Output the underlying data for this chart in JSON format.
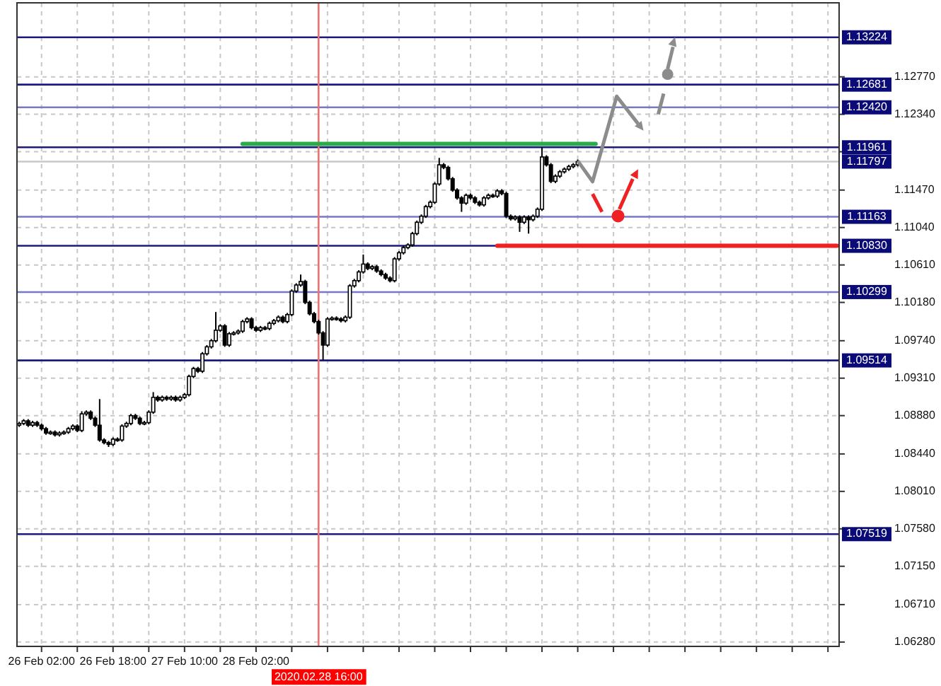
{
  "chart_data": {
    "type": "candlestick",
    "ylim": [
      1.0623,
      1.1362
    ],
    "categories": [
      null,
      null,
      null,
      null,
      null,
      "26 Feb 02:00",
      null,
      null,
      null,
      null,
      null,
      null,
      null,
      null,
      null,
      null,
      null,
      null,
      null,
      null,
      null,
      "26 Feb 18:00",
      null,
      null,
      null,
      null,
      null,
      null,
      null,
      null,
      null,
      null,
      null,
      null,
      null,
      null,
      null,
      "27 Feb 10:00",
      null,
      null,
      null,
      null,
      null,
      null,
      null,
      null,
      null,
      null,
      null,
      null,
      null,
      null,
      null,
      "28 Feb 02:00",
      null,
      null,
      null,
      null,
      null,
      null,
      null,
      null,
      null,
      null,
      null,
      null,
      null,
      "2020.02.28 16:00",
      null,
      null,
      null,
      null,
      null,
      null,
      null,
      null,
      null,
      null,
      null,
      null,
      null,
      null,
      null,
      null,
      null,
      null,
      null,
      null,
      null,
      null,
      null,
      null,
      null,
      null,
      null,
      null,
      null,
      null,
      null,
      null,
      null,
      null,
      null,
      null,
      null,
      null,
      null,
      null,
      null,
      null,
      null,
      null,
      null,
      null,
      null,
      null,
      null,
      null,
      null,
      null,
      null,
      null,
      null,
      null,
      null,
      null,
      null,
      null,
      null,
      null,
      null,
      null,
      null,
      null,
      null,
      null,
      null,
      null,
      null,
      null,
      null,
      null,
      null,
      null,
      null,
      null,
      null,
      null,
      null,
      null,
      null,
      null,
      null,
      null,
      null,
      null,
      null,
      null,
      null,
      null,
      null,
      null,
      null,
      null,
      null,
      null,
      null,
      null,
      null,
      null,
      null,
      null,
      null,
      null,
      null,
      null,
      null,
      null,
      null,
      null,
      null,
      null,
      null,
      null
    ],
    "yticks": [
      {
        "value": 1.1277,
        "label": "1.12770"
      },
      {
        "value": 1.1234,
        "label": "1.12340"
      },
      {
        "value": 1.1191,
        "label": null
      },
      {
        "value": 1.1147,
        "label": "1.11470"
      },
      {
        "value": 1.1104,
        "label": "1.11040"
      },
      {
        "value": 1.1061,
        "label": "1.10610"
      },
      {
        "value": 1.1018,
        "label": "1.10180"
      },
      {
        "value": 1.0974,
        "label": "1.09740"
      },
      {
        "value": 1.0931,
        "label": "1.09310"
      },
      {
        "value": 1.0888,
        "label": "1.08880"
      },
      {
        "value": 1.0844,
        "label": "1.08440"
      },
      {
        "value": 1.0801,
        "label": "1.08010"
      },
      {
        "value": 1.0758,
        "label": "1.07580"
      },
      {
        "value": 1.0715,
        "label": "1.07150"
      },
      {
        "value": 1.0671,
        "label": "1.06710"
      },
      {
        "value": 1.0628,
        "label": "1.06280"
      }
    ],
    "grid": true,
    "ref_lines": [
      {
        "axis": "y",
        "value": 1.13224,
        "label": "1.13224",
        "color": "#1a1a80"
      },
      {
        "axis": "y",
        "value": 1.12681,
        "label": "1.12681",
        "color": "#1a1a80"
      },
      {
        "axis": "y",
        "value": 1.1242,
        "label": "1.12420",
        "color": "#7878c8"
      },
      {
        "axis": "y",
        "value": 1.11961,
        "label": "1.11961",
        "color": "#1a1a80"
      },
      {
        "axis": "y",
        "value": 1.11797,
        "label": "1.11797",
        "color": "#c8c8c8"
      },
      {
        "axis": "y",
        "value": 1.11163,
        "label": "1.11163",
        "color": "#7878c8"
      },
      {
        "axis": "y",
        "value": 1.1083,
        "label": "1.10830",
        "color": "#1a1a80"
      },
      {
        "axis": "y",
        "value": 1.10299,
        "label": "1.10299",
        "color": "#7878c8"
      },
      {
        "axis": "y",
        "value": 1.09514,
        "label": "1.09514",
        "color": "#1a1a80"
      },
      {
        "axis": "y",
        "value": 1.07519,
        "label": "1.07519",
        "color": "#1a1a80"
      },
      {
        "axis": "x",
        "value": "2020.02.28 16:00",
        "color": "#f07070"
      }
    ],
    "series": [
      {
        "color": "#000000",
        "ohlc": [
          [
            1.0877,
            1.0881,
            1.0875,
            1.0879
          ],
          [
            1.0879,
            1.0884,
            1.0877,
            1.0882
          ],
          [
            1.0882,
            1.0884,
            1.0875,
            1.0877
          ],
          [
            1.0877,
            1.0882,
            1.0875,
            1.088
          ],
          [
            1.088,
            1.0882,
            1.0875,
            1.0877
          ],
          [
            1.0877,
            1.0879,
            1.0871,
            1.0873
          ],
          [
            1.0873,
            1.0875,
            1.0866,
            1.0868
          ],
          [
            1.0868,
            1.0871,
            1.0866,
            1.0869
          ],
          [
            1.0869,
            1.0871,
            1.0864,
            1.0866
          ],
          [
            1.0866,
            1.087,
            1.0864,
            1.0868
          ],
          [
            1.0868,
            1.0871,
            1.0866,
            1.0869
          ],
          [
            1.0869,
            1.0875,
            1.0867,
            1.0873
          ],
          [
            1.0873,
            1.0878,
            1.0871,
            1.0876
          ],
          [
            1.0876,
            1.0878,
            1.0869,
            1.0871
          ],
          [
            1.0871,
            1.0893,
            1.0869,
            1.089
          ],
          [
            1.089,
            1.0894,
            1.0888,
            1.0892
          ],
          [
            1.0892,
            1.0894,
            1.0883,
            1.0885
          ],
          [
            1.0885,
            1.0887,
            1.0875,
            1.0877
          ],
          [
            1.0877,
            1.0907,
            1.0858,
            1.086
          ],
          [
            1.086,
            1.0862,
            1.0855,
            1.0857
          ],
          [
            1.0857,
            1.0859,
            1.0852,
            1.0855
          ],
          [
            1.0855,
            1.0863,
            1.0853,
            1.0861
          ],
          [
            1.0861,
            1.0863,
            1.0858,
            1.086
          ],
          [
            1.086,
            1.0878,
            1.0858,
            1.0876
          ],
          [
            1.0876,
            1.0881,
            1.0874,
            1.0879
          ],
          [
            1.0879,
            1.089,
            1.0877,
            1.0888
          ],
          [
            1.0888,
            1.089,
            1.0883,
            1.0885
          ],
          [
            1.0885,
            1.0887,
            1.0877,
            1.0879
          ],
          [
            1.0879,
            1.0882,
            1.0877,
            1.088
          ],
          [
            1.088,
            1.0894,
            1.0878,
            1.0892
          ],
          [
            1.0892,
            1.0915,
            1.089,
            1.0909
          ],
          [
            1.0909,
            1.0911,
            1.0904,
            1.0906
          ],
          [
            1.0906,
            1.0911,
            1.0904,
            1.0909
          ],
          [
            1.0909,
            1.0911,
            1.0905,
            1.0907
          ],
          [
            1.0907,
            1.0911,
            1.0905,
            1.0909
          ],
          [
            1.0909,
            1.0911,
            1.0904,
            1.0906
          ],
          [
            1.0906,
            1.0911,
            1.0904,
            1.0909
          ],
          [
            1.0909,
            1.0914,
            1.0907,
            1.0912
          ],
          [
            1.0912,
            1.0935,
            1.091,
            1.0933
          ],
          [
            1.0933,
            1.0944,
            1.0931,
            1.0942
          ],
          [
            1.0942,
            1.0944,
            1.0937,
            1.0939
          ],
          [
            1.0939,
            1.0961,
            1.0937,
            1.0959
          ],
          [
            1.0959,
            1.0969,
            1.0957,
            1.0967
          ],
          [
            1.0967,
            1.0976,
            1.0965,
            1.0974
          ],
          [
            1.0974,
            1.1007,
            1.0972,
            1.0986
          ],
          [
            1.0986,
            1.0993,
            1.0984,
            1.0991
          ],
          [
            1.0991,
            1.0993,
            1.0967,
            1.0969
          ],
          [
            1.0969,
            1.0984,
            1.0967,
            1.0982
          ],
          [
            1.0982,
            1.0985,
            1.098,
            1.0983
          ],
          [
            1.0983,
            1.0987,
            1.0981,
            1.0985
          ],
          [
            1.0985,
            1.0998,
            1.0983,
            1.0996
          ],
          [
            1.0996,
            1.1001,
            1.0994,
            1.0999
          ],
          [
            1.0999,
            1.1001,
            1.0987,
            1.0989
          ],
          [
            1.0989,
            1.0991,
            1.0984,
            1.0986
          ],
          [
            1.0986,
            1.0991,
            1.0984,
            1.0989
          ],
          [
            1.0989,
            1.0991,
            1.0986,
            1.0988
          ],
          [
            1.0988,
            1.0996,
            1.0986,
            1.0994
          ],
          [
            1.0994,
            1.0999,
            1.0992,
            1.0997
          ],
          [
            1.0997,
            1.1003,
            1.0995,
            1.1001
          ],
          [
            1.1001,
            1.1003,
            1.0994,
            1.0996
          ],
          [
            1.0996,
            1.1006,
            1.0994,
            1.1004
          ],
          [
            1.1004,
            1.1033,
            1.1002,
            1.1031
          ],
          [
            1.1031,
            1.104,
            1.1029,
            1.1038
          ],
          [
            1.1038,
            1.105,
            1.1036,
            1.1042
          ],
          [
            1.1042,
            1.1044,
            1.1016,
            1.1018
          ],
          [
            1.1018,
            1.102,
            1.1003,
            1.1005
          ],
          [
            1.1005,
            1.1007,
            1.0994,
            1.0996
          ],
          [
            1.0996,
            1.0998,
            1.0981,
            1.0983
          ],
          [
            1.0983,
            1.0985,
            1.0952,
            1.0969
          ],
          [
            1.0969,
            1.1001,
            1.0967,
            1.0999
          ],
          [
            1.0999,
            1.1002,
            1.0997,
            1.1
          ],
          [
            1.1,
            1.1002,
            1.0997,
            1.0999
          ],
          [
            1.0999,
            1.1001,
            1.0995,
            1.0997
          ],
          [
            1.0997,
            1.1003,
            1.0995,
            1.1001
          ],
          [
            1.1001,
            1.1039,
            1.0999,
            1.1037
          ],
          [
            1.1037,
            1.1045,
            1.1035,
            1.1043
          ],
          [
            1.1043,
            1.1055,
            1.1041,
            1.1053
          ],
          [
            1.1053,
            1.1073,
            1.1051,
            1.1062
          ],
          [
            1.1062,
            1.1064,
            1.1055,
            1.1057
          ],
          [
            1.1057,
            1.1061,
            1.1055,
            1.1059
          ],
          [
            1.1059,
            1.1061,
            1.1052,
            1.1054
          ],
          [
            1.1054,
            1.1056,
            1.1048,
            1.105
          ],
          [
            1.105,
            1.1052,
            1.1044,
            1.1046
          ],
          [
            1.1046,
            1.1048,
            1.1041,
            1.1043
          ],
          [
            1.1043,
            1.107,
            1.1041,
            1.1068
          ],
          [
            1.1068,
            1.1077,
            1.1066,
            1.1075
          ],
          [
            1.1075,
            1.1083,
            1.1073,
            1.1081
          ],
          [
            1.1081,
            1.1086,
            1.1079,
            1.1084
          ],
          [
            1.1084,
            1.1099,
            1.1082,
            1.1097
          ],
          [
            1.1097,
            1.1112,
            1.1095,
            1.111
          ],
          [
            1.111,
            1.1119,
            1.1108,
            1.1117
          ],
          [
            1.1117,
            1.113,
            1.1115,
            1.1128
          ],
          [
            1.1128,
            1.1135,
            1.1126,
            1.1133
          ],
          [
            1.1133,
            1.1156,
            1.1131,
            1.1154
          ],
          [
            1.1154,
            1.1184,
            1.1152,
            1.1176
          ],
          [
            1.1176,
            1.1178,
            1.1171,
            1.1173
          ],
          [
            1.1173,
            1.1175,
            1.1158,
            1.116
          ],
          [
            1.116,
            1.1162,
            1.1145,
            1.1147
          ],
          [
            1.1147,
            1.1149,
            1.1136,
            1.1138
          ],
          [
            1.1138,
            1.114,
            1.1122,
            1.1132
          ],
          [
            1.1132,
            1.1143,
            1.113,
            1.1141
          ],
          [
            1.1141,
            1.1143,
            1.1136,
            1.1138
          ],
          [
            1.1138,
            1.114,
            1.1131,
            1.1133
          ],
          [
            1.1133,
            1.1135,
            1.1128,
            1.113
          ],
          [
            1.113,
            1.114,
            1.1128,
            1.1138
          ],
          [
            1.1138,
            1.1143,
            1.1136,
            1.1141
          ],
          [
            1.1141,
            1.1143,
            1.1138,
            1.114
          ],
          [
            1.114,
            1.1148,
            1.1138,
            1.1146
          ],
          [
            1.1146,
            1.1148,
            1.1141,
            1.1143
          ],
          [
            1.1143,
            1.1145,
            1.1115,
            1.1117
          ],
          [
            1.1117,
            1.1119,
            1.1112,
            1.1114
          ],
          [
            1.1114,
            1.1118,
            1.1112,
            1.1116
          ],
          [
            1.1116,
            1.1118,
            1.1099,
            1.111
          ],
          [
            1.111,
            1.1118,
            1.1108,
            1.1116
          ],
          [
            1.1116,
            1.1118,
            1.1097,
            1.1113
          ],
          [
            1.1113,
            1.1119,
            1.1111,
            1.1117
          ],
          [
            1.1117,
            1.1127,
            1.1115,
            1.1125
          ],
          [
            1.1125,
            1.1196,
            1.1123,
            1.1185
          ],
          [
            1.1185,
            1.1187,
            1.1174,
            1.1176
          ],
          [
            1.1176,
            1.1178,
            1.1155,
            1.1157
          ],
          [
            1.1157,
            1.1165,
            1.1155,
            1.1163
          ],
          [
            1.1163,
            1.117,
            1.1161,
            1.1168
          ],
          [
            1.1168,
            1.1173,
            1.1166,
            1.1171
          ],
          [
            1.1171,
            1.1176,
            1.1169,
            1.1174
          ],
          [
            1.1174,
            1.1178,
            1.1172,
            1.1176
          ],
          [
            1.1176,
            1.1182,
            1.1174,
            1.11797
          ],
          null,
          null,
          null,
          null,
          null,
          null,
          null,
          null,
          null,
          null,
          null,
          null,
          null,
          null,
          null,
          null,
          null,
          null,
          null,
          null,
          null,
          null,
          null,
          null,
          null,
          null,
          null,
          null,
          null,
          null,
          null,
          null,
          null,
          null,
          null,
          null,
          null,
          null,
          null,
          null,
          null,
          null,
          null,
          null,
          null,
          null,
          null,
          null,
          null,
          null,
          null,
          null,
          null,
          null,
          null,
          null,
          null,
          null
        ]
      },
      {
        "type": "line",
        "color": "#2eaa48",
        "values": [
          null,
          null,
          null,
          null,
          null,
          null,
          null,
          null,
          null,
          null,
          null,
          null,
          null,
          null,
          null,
          null,
          null,
          null,
          null,
          null,
          null,
          null,
          null,
          null,
          null,
          null,
          null,
          null,
          null,
          null,
          null,
          null,
          null,
          null,
          null,
          null,
          null,
          null,
          null,
          null,
          null,
          null,
          null,
          null,
          null,
          null,
          null,
          null,
          null,
          null,
          1.12,
          1.12,
          1.12,
          1.12,
          1.12,
          1.12,
          1.12,
          1.12,
          1.12,
          1.12,
          1.12,
          1.12,
          1.12,
          1.12,
          1.12,
          1.12,
          1.12,
          1.12,
          1.12,
          1.12,
          1.12,
          1.12,
          1.12,
          1.12,
          1.12,
          1.12,
          1.12,
          1.12,
          1.12,
          1.12,
          1.12,
          1.12,
          1.12,
          1.12,
          1.12,
          1.12,
          1.12,
          1.12,
          1.12,
          1.12,
          1.12,
          1.12,
          1.12,
          1.12,
          1.12,
          1.12,
          1.12,
          1.12,
          1.12,
          1.12,
          1.12,
          1.12,
          1.12,
          1.12,
          1.12,
          1.12,
          1.12,
          1.12,
          1.12,
          1.12,
          1.12,
          1.12,
          1.12,
          1.12,
          1.12,
          1.12,
          1.12,
          1.12,
          1.12,
          1.12,
          1.12,
          1.12,
          1.12,
          1.12,
          1.12,
          1.12,
          1.12,
          1.12,
          1.12,
          1.12,
          null,
          null,
          null,
          null,
          null,
          null,
          null,
          null,
          null,
          null,
          null,
          null,
          null,
          null,
          null,
          null,
          null,
          null,
          null,
          null,
          null,
          null,
          null,
          null,
          null,
          null,
          null,
          null,
          null,
          null,
          null,
          null,
          null,
          null,
          null,
          null,
          null,
          null,
          null,
          null,
          null,
          null,
          null,
          null,
          null,
          null,
          null,
          null,
          null,
          null,
          null,
          null,
          null,
          null
        ]
      },
      {
        "type": "line",
        "color": "#ee2222",
        "values": [
          null,
          null,
          null,
          null,
          null,
          null,
          null,
          null,
          null,
          null,
          null,
          null,
          null,
          null,
          null,
          null,
          null,
          null,
          null,
          null,
          null,
          null,
          null,
          null,
          null,
          null,
          null,
          null,
          null,
          null,
          null,
          null,
          null,
          null,
          null,
          null,
          null,
          null,
          null,
          null,
          null,
          null,
          null,
          null,
          null,
          null,
          null,
          null,
          null,
          null,
          null,
          null,
          null,
          null,
          null,
          null,
          null,
          null,
          null,
          null,
          null,
          null,
          null,
          null,
          null,
          null,
          null,
          null,
          null,
          null,
          null,
          null,
          null,
          null,
          null,
          null,
          null,
          null,
          null,
          null,
          null,
          null,
          null,
          null,
          null,
          null,
          null,
          null,
          null,
          null,
          null,
          null,
          null,
          null,
          null,
          null,
          null,
          null,
          null,
          null,
          null,
          null,
          null,
          null,
          null,
          null,
          null,
          1.1083,
          1.1083,
          1.1083,
          1.1083,
          1.1083,
          1.1083,
          1.1083,
          1.1083,
          1.1083,
          1.1083,
          1.1083,
          1.1083,
          1.1083,
          1.1083,
          1.1083,
          1.1083,
          1.1083,
          1.1083,
          1.1083,
          1.1083,
          1.1083,
          1.1083,
          1.1083,
          1.1083,
          1.1083,
          1.1083,
          1.1083,
          1.1083,
          1.1083,
          1.1083,
          1.1083,
          1.1083,
          1.1083,
          1.1083,
          1.1083,
          1.1083,
          1.1083,
          1.1083,
          1.1083,
          1.1083,
          1.1083,
          1.1083,
          1.1083,
          1.1083,
          1.1083,
          1.1083,
          1.1083,
          1.1083,
          1.1083,
          1.1083,
          1.1083,
          1.1083,
          1.1083,
          1.1083,
          1.1083,
          1.1083,
          1.1083,
          1.1083,
          1.1083,
          1.1083,
          1.1083,
          1.1083,
          1.1083,
          1.1083,
          1.1083,
          1.1083,
          1.1083,
          1.1083,
          1.1083,
          1.1083,
          1.1083,
          1.1083,
          1.1083,
          1.1083,
          1.1083,
          1.1083,
          1.1083
        ]
      }
    ]
  }
}
